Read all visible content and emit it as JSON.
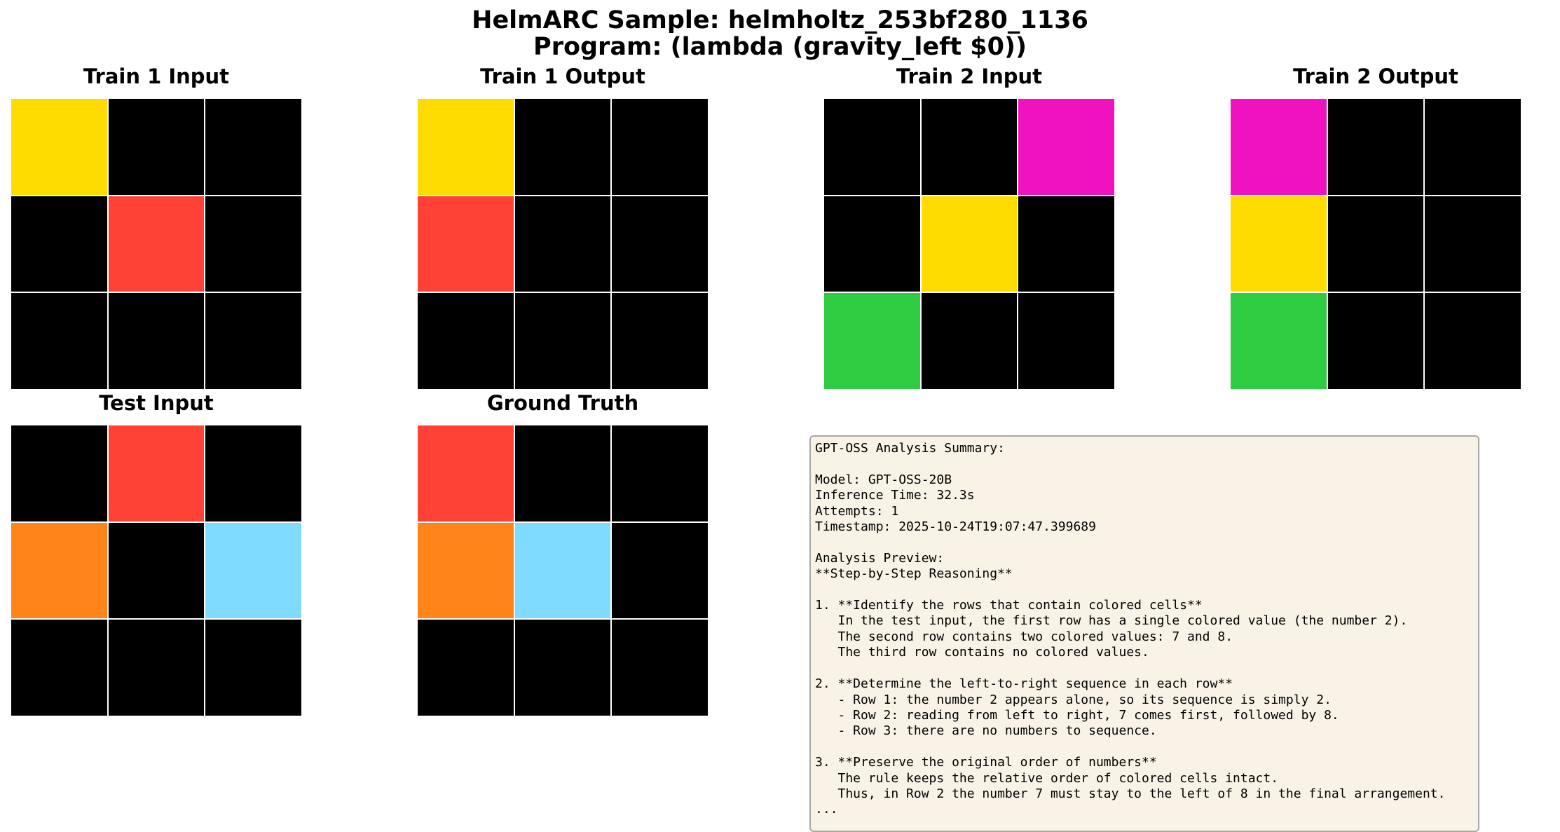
{
  "title_line1": "HelmARC Sample: helmholtz_253bf280_1136",
  "title_line2": "Program: (lambda (gravity_left $0))",
  "palette": {
    "0": "#000000",
    "2": "#ff4136",
    "4": "#2ecc40",
    "5": "#ffdc00",
    "6": "#f012be",
    "7": "#ff851b",
    "8": "#7fdbff"
  },
  "panels": [
    {
      "title": "Train 1 Input",
      "grid": [
        [
          5,
          0,
          0
        ],
        [
          0,
          2,
          0
        ],
        [
          0,
          0,
          0
        ]
      ]
    },
    {
      "title": "Train 1 Output",
      "grid": [
        [
          5,
          0,
          0
        ],
        [
          2,
          0,
          0
        ],
        [
          0,
          0,
          0
        ]
      ]
    },
    {
      "title": "Train 2 Input",
      "grid": [
        [
          0,
          0,
          6
        ],
        [
          0,
          5,
          0
        ],
        [
          4,
          0,
          0
        ]
      ]
    },
    {
      "title": "Train 2 Output",
      "grid": [
        [
          6,
          0,
          0
        ],
        [
          5,
          0,
          0
        ],
        [
          4,
          0,
          0
        ]
      ]
    },
    {
      "title": "Test Input",
      "grid": [
        [
          0,
          2,
          0
        ],
        [
          7,
          0,
          8
        ],
        [
          0,
          0,
          0
        ]
      ]
    },
    {
      "title": "Ground Truth",
      "grid": [
        [
          2,
          0,
          0
        ],
        [
          7,
          8,
          0
        ],
        [
          0,
          0,
          0
        ]
      ]
    }
  ],
  "summary_text": "GPT-OSS Analysis Summary:\n\nModel: GPT-OSS-20B\nInference Time: 32.3s\nAttempts: 1\nTimestamp: 2025-10-24T19:07:47.399689\n\nAnalysis Preview:\n**Step-by-Step Reasoning**\n\n1. **Identify the rows that contain colored cells**\n   In the test input, the first row has a single colored value (the number 2).\n   The second row contains two colored values: 7 and 8.\n   The third row contains no colored values.\n\n2. **Determine the left-to-right sequence in each row**\n   - Row 1: the number 2 appears alone, so its sequence is simply 2.\n   - Row 2: reading from left to right, 7 comes first, followed by 8.\n   - Row 3: there are no numbers to sequence.\n\n3. **Preserve the original order of numbers**\n   The rule keeps the relative order of colored cells intact.\n   Thus, in Row 2 the number 7 must stay to the left of 8 in the final arrangement.\n..."
}
